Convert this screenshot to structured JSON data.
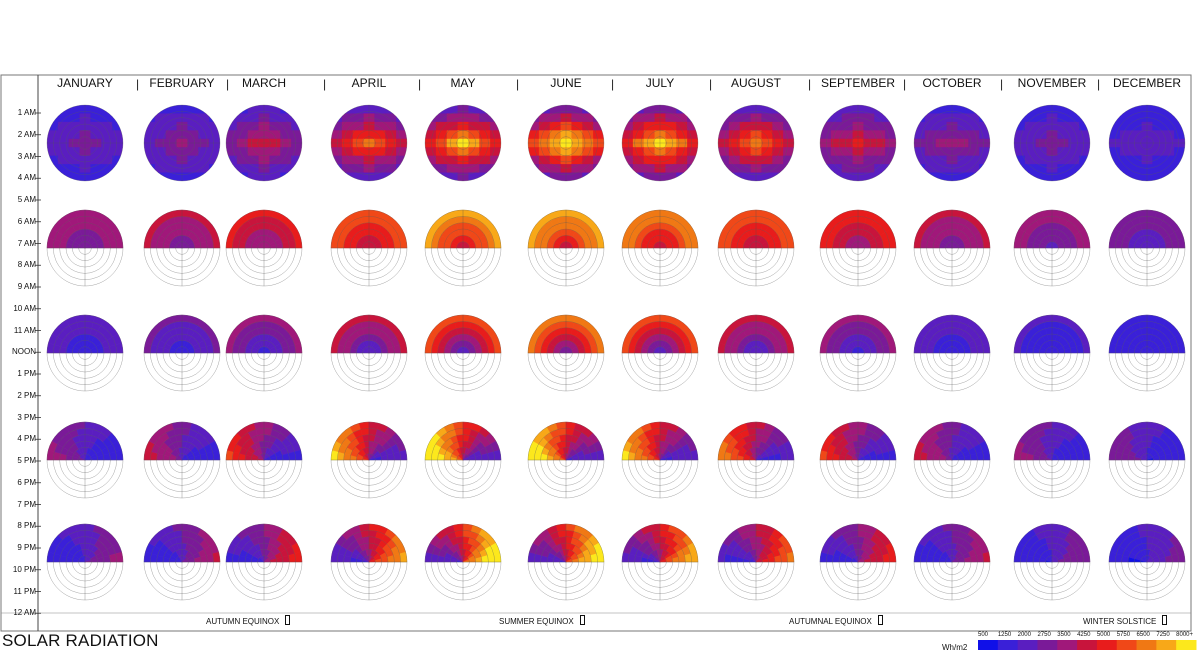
{
  "title": "SOLAR RADIATION",
  "months": [
    "JANUARY",
    "FEBRUARY",
    "MARCH",
    "APRIL",
    "MAY",
    "JUNE",
    "JULY",
    "AUGUST",
    "SEPTEMBER",
    "OCTOBER",
    "NOVEMBER",
    "DECEMBER"
  ],
  "hours": [
    "1 AM",
    "2 AM",
    "3 AM",
    "4 AM",
    "5 AM",
    "6 AM",
    "7 AM",
    "8 AM",
    "9 AM",
    "10 AM",
    "11 AM",
    "NOON",
    "1 PM",
    "2 PM",
    "3 PM",
    "4 PM",
    "5 PM",
    "6 PM",
    "7 PM",
    "8 PM",
    "9 PM",
    "10 PM",
    "11 PM",
    "12 AM"
  ],
  "notes": [
    {
      "label": "AUTUMN EQUINOX"
    },
    {
      "label": "SUMMER EQUINOX"
    },
    {
      "label": "AUTUMNAL EQUINOX"
    },
    {
      "label": "WINTER SOLSTICE"
    }
  ],
  "legend": {
    "unit": "Wh/m2",
    "ticks": [
      "500",
      "1250",
      "2000",
      "2750",
      "3500",
      "4250",
      "5000",
      "5750",
      "6500",
      "7250",
      "8000+"
    ],
    "colors": [
      "#1010e8",
      "#3a20d8",
      "#5a1ec0",
      "#7a1a98",
      "#a0187a",
      "#c8143c",
      "#e81c1c",
      "#f04818",
      "#f07814",
      "#f8a818",
      "#fce81c"
    ]
  },
  "domes": {
    "rows": [
      "full",
      "upper",
      "upper-south",
      "upper-west",
      "upper-east"
    ],
    "intensity": [
      [
        0.22,
        0.28,
        0.42,
        0.62,
        0.8,
        0.88,
        0.82,
        0.66,
        0.48,
        0.32,
        0.22,
        0.16
      ],
      [
        0.4,
        0.45,
        0.55,
        0.7,
        0.82,
        0.85,
        0.8,
        0.7,
        0.58,
        0.46,
        0.36,
        0.3
      ],
      [
        0.18,
        0.22,
        0.3,
        0.42,
        0.58,
        0.7,
        0.56,
        0.42,
        0.3,
        0.2,
        0.14,
        0.12
      ],
      [
        0.3,
        0.38,
        0.5,
        0.72,
        0.85,
        0.82,
        0.72,
        0.62,
        0.5,
        0.38,
        0.3,
        0.26
      ],
      [
        0.28,
        0.34,
        0.46,
        0.66,
        0.82,
        0.8,
        0.7,
        0.58,
        0.46,
        0.34,
        0.26,
        0.22
      ]
    ]
  }
}
